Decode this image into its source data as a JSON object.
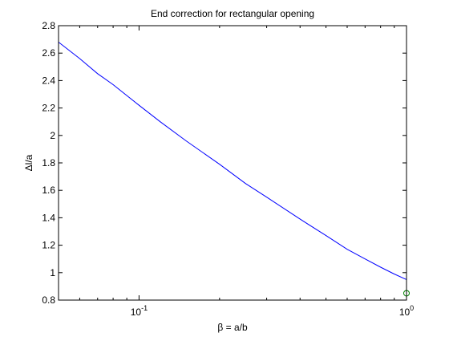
{
  "chart_data": {
    "type": "line",
    "title": "End correction for rectangular opening",
    "xlabel": "β = a/b",
    "ylabel": "Δl/a",
    "xscale": "log",
    "xlim": [
      0.05,
      1.0
    ],
    "ylim": [
      0.8,
      2.8
    ],
    "grid": false,
    "legend": "none",
    "x_ticks": [
      {
        "value": 0.1,
        "base": "10",
        "exp": "-1"
      },
      {
        "value": 1.0,
        "base": "10",
        "exp": "0"
      }
    ],
    "y_ticks": [
      {
        "value": 0.8,
        "label": "0.8"
      },
      {
        "value": 1.0,
        "label": "1"
      },
      {
        "value": 1.2,
        "label": "1.2"
      },
      {
        "value": 1.4,
        "label": "1.4"
      },
      {
        "value": 1.6,
        "label": "1.6"
      },
      {
        "value": 1.8,
        "label": "1.8"
      },
      {
        "value": 2.0,
        "label": "2"
      },
      {
        "value": 2.2,
        "label": "2.2"
      },
      {
        "value": 2.4,
        "label": "2.4"
      },
      {
        "value": 2.6,
        "label": "2.6"
      },
      {
        "value": 2.8,
        "label": "2.8"
      }
    ],
    "series": [
      {
        "color": "#0000ff",
        "style": "line",
        "x": [
          0.05,
          0.06,
          0.07,
          0.08,
          0.1,
          0.12,
          0.15,
          0.2,
          0.25,
          0.3,
          0.4,
          0.5,
          0.6,
          0.7,
          0.8,
          0.9,
          1.0
        ],
        "y": [
          2.68,
          2.56,
          2.45,
          2.37,
          2.22,
          2.1,
          1.96,
          1.79,
          1.65,
          1.55,
          1.39,
          1.27,
          1.17,
          1.1,
          1.04,
          0.99,
          0.95
        ]
      },
      {
        "color": "#008000",
        "style": "marker",
        "marker": "circle",
        "x": [
          1.0
        ],
        "y": [
          0.85
        ]
      }
    ]
  }
}
